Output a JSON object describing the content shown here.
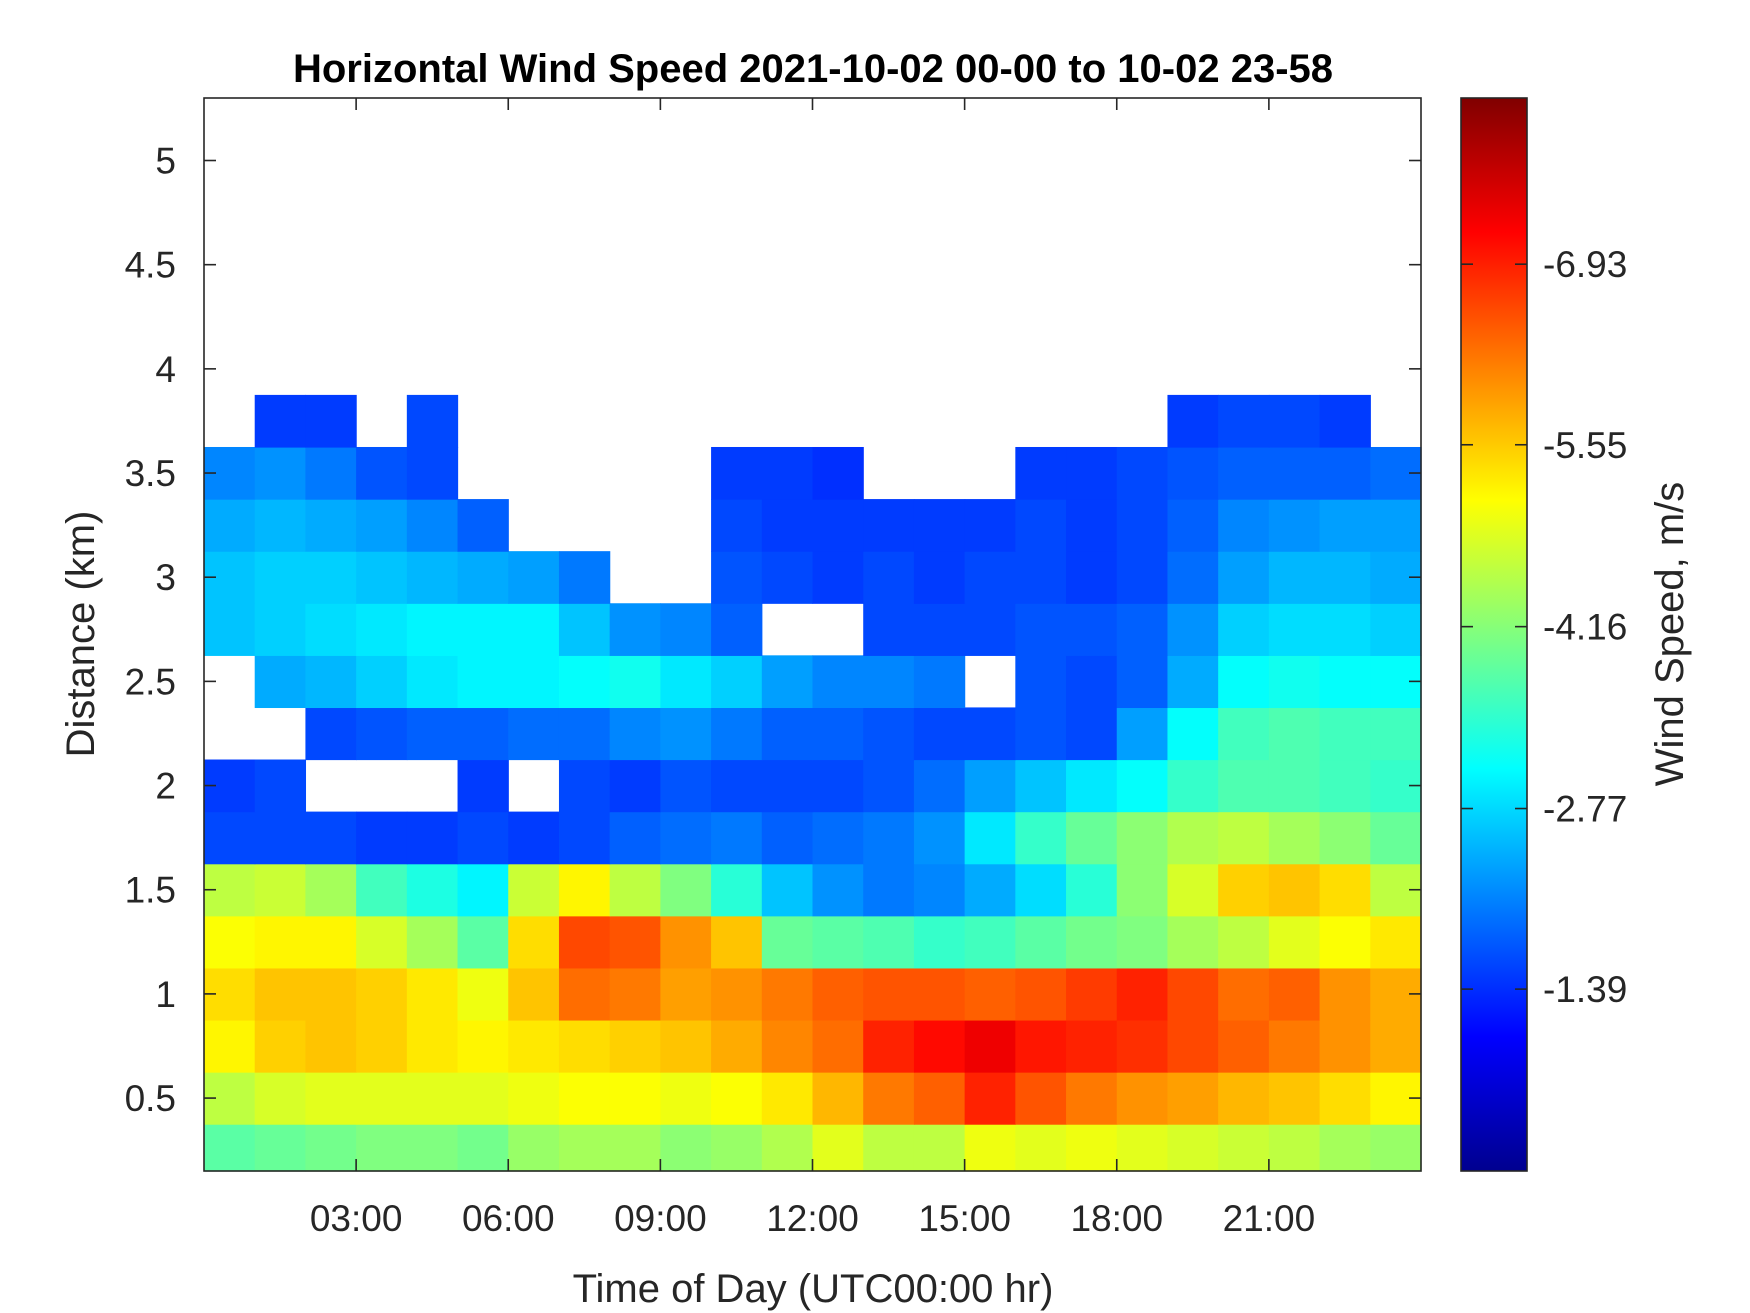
{
  "chart_data": {
    "type": "heatmap",
    "title": "Horizontal Wind Speed 2021-10-02 00-00 to 10-02 23-58",
    "xlabel": "Time of Day (UTC00:00 hr)",
    "ylabel": "Distance (km)",
    "colorbar_label": "Wind Speed, m/s",
    "xlim_hours": [
      0,
      24
    ],
    "ylim_km": [
      0.15,
      5.3
    ],
    "x_ticks": [
      {
        "value": 3,
        "label": "03:00"
      },
      {
        "value": 6,
        "label": "06:00"
      },
      {
        "value": 9,
        "label": "09:00"
      },
      {
        "value": 12,
        "label": "12:00"
      },
      {
        "value": 15,
        "label": "15:00"
      },
      {
        "value": 18,
        "label": "18:00"
      },
      {
        "value": 21,
        "label": "21:00"
      }
    ],
    "y_ticks": [
      {
        "value": 0.5,
        "label": "0.5"
      },
      {
        "value": 1,
        "label": "1"
      },
      {
        "value": 1.5,
        "label": "1.5"
      },
      {
        "value": 2,
        "label": "2"
      },
      {
        "value": 2.5,
        "label": "2.5"
      },
      {
        "value": 3,
        "label": "3"
      },
      {
        "value": 3.5,
        "label": "3.5"
      },
      {
        "value": 4,
        "label": "4"
      },
      {
        "value": 4.5,
        "label": "4.5"
      },
      {
        "value": 5,
        "label": "5"
      }
    ],
    "colorbar": {
      "colormap": "jet",
      "range": [
        -8.2,
        0.0
      ],
      "ticks": [
        {
          "value": -6.93,
          "label": "-6.93"
        },
        {
          "value": -5.55,
          "label": "-5.55"
        },
        {
          "value": -4.16,
          "label": "-4.16"
        },
        {
          "value": -2.77,
          "label": "-2.77"
        },
        {
          "value": -1.39,
          "label": "-1.39"
        }
      ]
    },
    "grid": false,
    "colormap_stops": [
      "#00008f",
      "#0000ff",
      "#00ffff",
      "#ffff00",
      "#ff0000",
      "#800000"
    ],
    "x_hours": [
      0.5,
      1.5,
      2.5,
      3.5,
      4.5,
      5.5,
      6.5,
      7.5,
      8.5,
      9.5,
      10.5,
      11.5,
      12.5,
      13.5,
      14.5,
      15.5,
      16.5,
      17.5,
      18.5,
      19.5,
      20.5,
      21.5,
      22.5,
      23.5
    ],
    "y_km": [
      0.25,
      0.5,
      0.75,
      1.0,
      1.25,
      1.5,
      1.75,
      2.0,
      2.25,
      2.5,
      2.75,
      3.0,
      3.25,
      3.5,
      3.75
    ],
    "z_wind_speed": [
      [
        -3.8,
        -3.9,
        -4.0,
        -4.1,
        -4.1,
        -4.0,
        -4.3,
        -4.4,
        -4.4,
        -4.2,
        -4.3,
        -4.5,
        -4.9,
        -4.6,
        -4.6,
        -5.0,
        -4.9,
        -5.0,
        -4.9,
        -4.8,
        -4.7,
        -4.6,
        -4.4,
        -4.3
      ],
      [
        -4.6,
        -4.8,
        -4.9,
        -4.9,
        -4.9,
        -4.9,
        -5.0,
        -5.1,
        -5.1,
        -5.0,
        -5.1,
        -5.3,
        -5.7,
        -6.2,
        -6.4,
        -6.9,
        -6.5,
        -6.2,
        -6.0,
        -5.9,
        -5.7,
        -5.6,
        -5.4,
        -5.2
      ],
      [
        -5.2,
        -5.5,
        -5.6,
        -5.5,
        -5.3,
        -5.2,
        -5.3,
        -5.4,
        -5.5,
        -5.6,
        -5.8,
        -6.1,
        -6.3,
        -6.9,
        -7.1,
        -7.3,
        -7.0,
        -6.9,
        -6.8,
        -6.6,
        -6.4,
        -6.2,
        -6.0,
        -5.8
      ],
      [
        -5.4,
        -5.6,
        -5.6,
        -5.5,
        -5.3,
        -5.0,
        -5.6,
        -6.3,
        -6.2,
        -5.9,
        -6.0,
        -6.2,
        -6.4,
        -6.5,
        -6.5,
        -6.4,
        -6.5,
        -6.7,
        -6.9,
        -6.6,
        -6.3,
        -6.4,
        -6.0,
        -5.8
      ],
      [
        -5.1,
        -5.2,
        -5.2,
        -4.8,
        -4.4,
        -3.8,
        -5.4,
        -6.6,
        -6.5,
        -6.0,
        -5.6,
        -3.9,
        -3.8,
        -3.7,
        -3.5,
        -3.6,
        -3.8,
        -4.0,
        -4.1,
        -4.4,
        -4.6,
        -4.9,
        -5.1,
        -5.3
      ],
      [
        -4.6,
        -4.7,
        -4.4,
        -3.6,
        -3.3,
        -3.0,
        -4.7,
        -5.2,
        -4.6,
        -4.1,
        -3.4,
        -2.6,
        -2.2,
        -2.0,
        -2.1,
        -2.4,
        -2.8,
        -3.4,
        -4.2,
        -4.8,
        -5.5,
        -5.6,
        -5.4,
        -4.6
      ],
      [
        -1.6,
        -1.6,
        -1.6,
        -1.5,
        -1.5,
        -1.6,
        -1.5,
        -1.6,
        -1.8,
        -1.9,
        -2.0,
        -1.8,
        -1.9,
        -2.0,
        -2.2,
        -2.9,
        -3.5,
        -3.9,
        -4.2,
        -4.5,
        -4.6,
        -4.4,
        -4.2,
        -3.9
      ],
      [
        -1.5,
        -1.6,
        null,
        null,
        null,
        -1.5,
        null,
        -1.6,
        -1.5,
        -1.7,
        -1.6,
        -1.6,
        -1.6,
        -1.7,
        -1.9,
        -2.3,
        -2.6,
        -2.9,
        -3.1,
        -3.5,
        -3.7,
        -3.7,
        -3.6,
        -3.5
      ],
      [
        null,
        null,
        -1.6,
        -1.7,
        -1.8,
        -1.8,
        -1.9,
        -1.9,
        -2.1,
        -2.2,
        -2.0,
        -1.8,
        -1.8,
        -1.7,
        -1.6,
        -1.6,
        -1.7,
        -1.6,
        -2.3,
        -3.1,
        -3.6,
        -3.7,
        -3.6,
        -3.6
      ],
      [
        null,
        -2.4,
        -2.5,
        -2.7,
        -2.9,
        -3.0,
        -3.0,
        -3.1,
        -3.2,
        -2.9,
        -2.7,
        -2.3,
        -2.1,
        -2.1,
        -2.0,
        null,
        -1.7,
        -1.6,
        -1.8,
        -2.4,
        -3.1,
        -3.2,
        -3.1,
        -3.1
      ],
      [
        -2.6,
        -2.7,
        -2.8,
        -2.9,
        -3.0,
        -3.0,
        -3.0,
        -2.6,
        -2.2,
        -2.1,
        -1.8,
        null,
        null,
        -1.6,
        -1.6,
        -1.6,
        -1.7,
        -1.7,
        -1.8,
        -2.2,
        -2.7,
        -2.8,
        -2.8,
        -2.7
      ],
      [
        -2.6,
        -2.7,
        -2.7,
        -2.6,
        -2.5,
        -2.4,
        -2.3,
        -2.0,
        null,
        null,
        -1.7,
        -1.6,
        -1.5,
        -1.6,
        -1.5,
        -1.6,
        -1.6,
        -1.5,
        -1.6,
        -1.9,
        -2.3,
        -2.5,
        -2.5,
        -2.4
      ],
      [
        -2.4,
        -2.5,
        -2.4,
        -2.3,
        -2.1,
        -1.8,
        null,
        null,
        null,
        null,
        -1.6,
        -1.5,
        -1.5,
        -1.5,
        -1.5,
        -1.5,
        -1.6,
        -1.5,
        -1.6,
        -1.8,
        -2.1,
        -2.2,
        -2.3,
        -2.3
      ],
      [
        -2.1,
        -2.2,
        -2.0,
        -1.7,
        -1.6,
        null,
        null,
        null,
        null,
        null,
        -1.5,
        -1.5,
        -1.4,
        null,
        null,
        null,
        -1.5,
        -1.5,
        -1.6,
        -1.7,
        -1.8,
        -1.8,
        -1.8,
        -1.9
      ],
      [
        null,
        -1.5,
        -1.5,
        null,
        -1.6,
        null,
        null,
        null,
        null,
        null,
        null,
        null,
        null,
        null,
        null,
        null,
        null,
        null,
        null,
        -1.5,
        -1.6,
        -1.6,
        -1.5,
        null
      ]
    ]
  }
}
